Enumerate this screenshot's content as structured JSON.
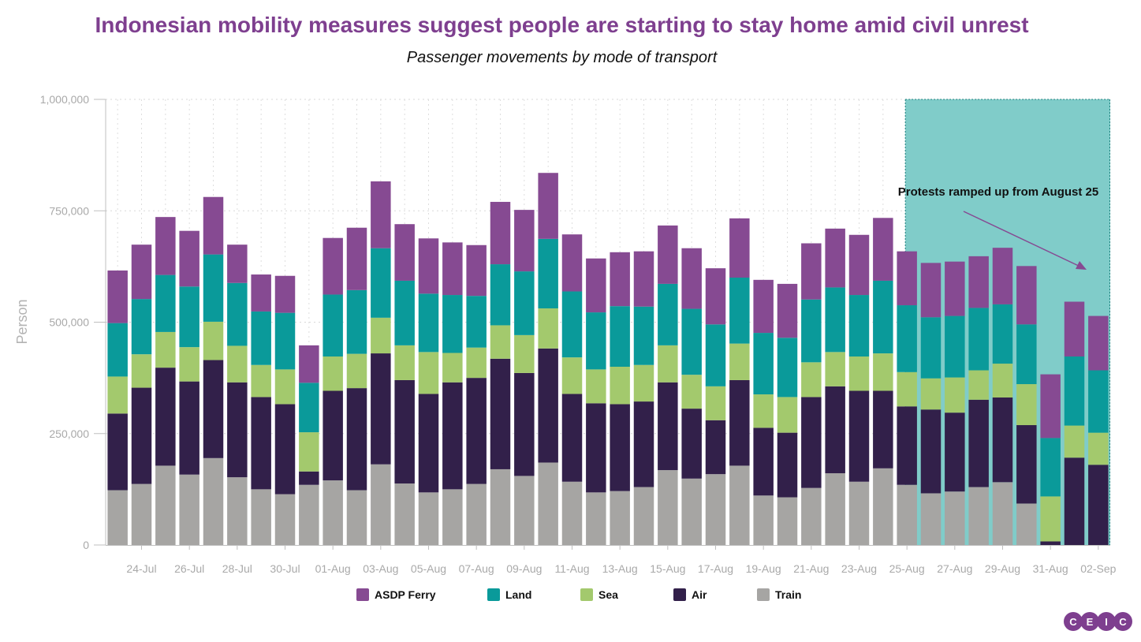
{
  "chart_data": {
    "type": "bar",
    "stacked": true,
    "title": "Indonesian mobility measures suggest people are starting to stay home amid civil unrest",
    "subtitle": "Passenger movements by mode of transport",
    "ylabel": "Person",
    "xlabel": "",
    "ylim": [
      0,
      1000000
    ],
    "y_ticks": [
      "0",
      "250,000",
      "500,000",
      "750,000",
      "1,000,000"
    ],
    "y_tick_values": [
      0,
      250000,
      500000,
      750000,
      1000000
    ],
    "grid": true,
    "legend_position": "bottom",
    "categories": [
      "23-Jul",
      "24-Jul",
      "25-Jul",
      "26-Jul",
      "27-Jul",
      "28-Jul",
      "29-Jul",
      "30-Jul",
      "31-Jul",
      "01-Aug",
      "02-Aug",
      "03-Aug",
      "04-Aug",
      "05-Aug",
      "06-Aug",
      "07-Aug",
      "08-Aug",
      "09-Aug",
      "10-Aug",
      "11-Aug",
      "12-Aug",
      "13-Aug",
      "14-Aug",
      "15-Aug",
      "16-Aug",
      "17-Aug",
      "18-Aug",
      "19-Aug",
      "20-Aug",
      "21-Aug",
      "22-Aug",
      "23-Aug",
      "24-Aug",
      "25-Aug",
      "26-Aug",
      "27-Aug",
      "28-Aug",
      "29-Aug",
      "30-Aug",
      "31-Aug",
      "01-Sep",
      "02-Sep"
    ],
    "x_tick_labels": [
      "24-Jul",
      "26-Jul",
      "28-Jul",
      "30-Jul",
      "01-Aug",
      "03-Aug",
      "05-Aug",
      "07-Aug",
      "09-Aug",
      "11-Aug",
      "13-Aug",
      "15-Aug",
      "17-Aug",
      "19-Aug",
      "21-Aug",
      "23-Aug",
      "25-Aug",
      "27-Aug",
      "29-Aug",
      "31-Aug",
      "02-Sep"
    ],
    "series": [
      {
        "name": "Train",
        "color": "#a6a5a3",
        "values": [
          123000,
          137000,
          178000,
          158000,
          195000,
          152000,
          125000,
          114000,
          135000,
          145000,
          123000,
          181000,
          138000,
          118000,
          125000,
          137000,
          170000,
          155000,
          185000,
          142000,
          118000,
          121000,
          130000,
          168000,
          149000,
          159000,
          178000,
          111000,
          107000,
          128000,
          161000,
          142000,
          172000,
          135000,
          116000,
          120000,
          130000,
          141000,
          93000,
          0,
          0,
          0
        ]
      },
      {
        "name": "Air",
        "color": "#32204a",
        "values": [
          172000,
          216000,
          220000,
          209000,
          220000,
          213000,
          207000,
          202000,
          30000,
          201000,
          229000,
          249000,
          232000,
          221000,
          240000,
          238000,
          248000,
          231000,
          256000,
          197000,
          200000,
          195000,
          192000,
          197000,
          157000,
          121000,
          192000,
          152000,
          145000,
          204000,
          195000,
          204000,
          174000,
          176000,
          188000,
          177000,
          196000,
          190000,
          176000,
          8000,
          196000,
          180000
        ]
      },
      {
        "name": "Sea",
        "color": "#a3c96d",
        "values": [
          83000,
          75000,
          80000,
          77000,
          86000,
          82000,
          72000,
          78000,
          88000,
          77000,
          77000,
          80000,
          78000,
          94000,
          66000,
          68000,
          75000,
          85000,
          90000,
          82000,
          76000,
          84000,
          82000,
          83000,
          76000,
          76000,
          82000,
          75000,
          80000,
          78000,
          77000,
          77000,
          84000,
          77000,
          70000,
          79000,
          66000,
          76000,
          92000,
          101000,
          72000,
          72000
        ]
      },
      {
        "name": "Land",
        "color": "#0a9a9a",
        "values": [
          120000,
          124000,
          128000,
          136000,
          151000,
          141000,
          120000,
          127000,
          111000,
          139000,
          143000,
          156000,
          145000,
          131000,
          130000,
          116000,
          137000,
          143000,
          156000,
          148000,
          128000,
          136000,
          131000,
          138000,
          148000,
          139000,
          148000,
          138000,
          133000,
          141000,
          145000,
          138000,
          163000,
          150000,
          137000,
          138000,
          140000,
          133000,
          134000,
          131000,
          155000,
          140000
        ]
      },
      {
        "name": "ASDP Ferry",
        "color": "#864a92",
        "values": [
          118000,
          122000,
          130000,
          125000,
          129000,
          86000,
          83000,
          83000,
          84000,
          127000,
          140000,
          150000,
          127000,
          124000,
          118000,
          114000,
          140000,
          138000,
          148000,
          128000,
          121000,
          121000,
          124000,
          131000,
          136000,
          126000,
          133000,
          119000,
          121000,
          126000,
          132000,
          135000,
          141000,
          121000,
          122000,
          122000,
          116000,
          127000,
          131000,
          143000,
          123000,
          122000
        ]
      }
    ],
    "highlight_region": {
      "from": "25-Aug",
      "to": "02-Sep",
      "label": "Protests ramped up from August 25",
      "color": "#80ccc9"
    }
  },
  "legend": [
    "ASDP Ferry",
    "Land",
    "Sea",
    "Air",
    "Train"
  ],
  "logo_letters": [
    "C",
    "E",
    "I",
    "C"
  ],
  "logo_color": "#7e3f8f"
}
